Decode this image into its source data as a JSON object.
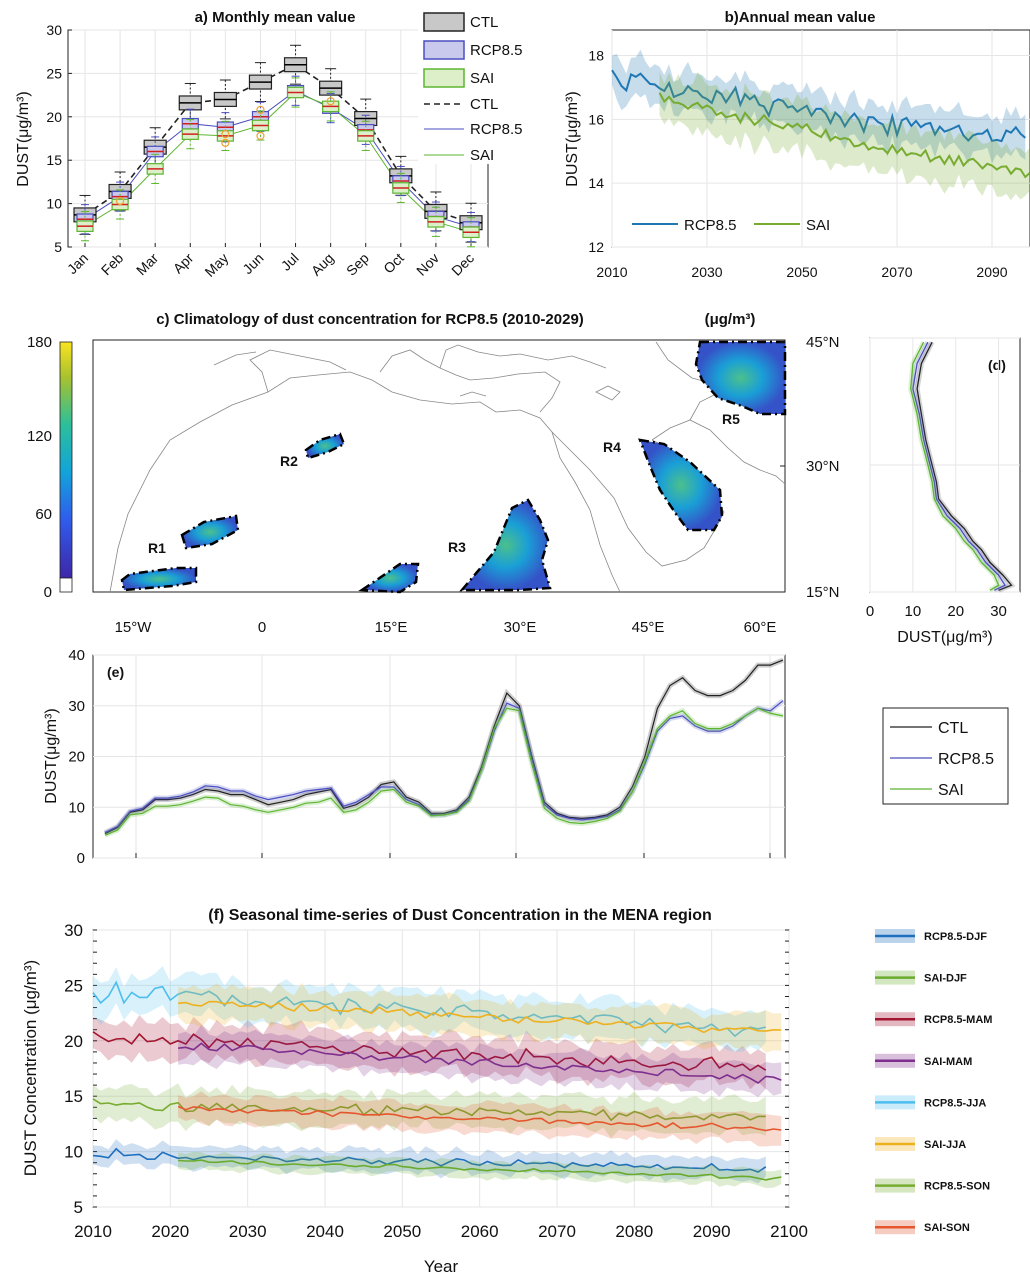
{
  "figure": {
    "a_title": "a) Monthly mean value",
    "b_title": "b)Annual mean value",
    "c_title": "c) Climatology of dust concentration for RCP8.5 (2010-2029)",
    "c_unit": "(μg/m³)",
    "d_label": "(d)",
    "e_label": "(e)",
    "f_title": "(f) Seasonal time-series of Dust Concentration in the MENA region",
    "ylabel_dust": "DUST(μg/m³)",
    "xlabel_d": "DUST(μg/m³)",
    "ylabel_f": "DUST Concentration (μg/m³)",
    "xlabel_f": "Year"
  },
  "legends": {
    "a": [
      "CTL",
      "RCP8.5",
      "SAI",
      "CTL",
      "RCP8.5",
      "SAI"
    ],
    "b": [
      "RCP8.5",
      "SAI"
    ],
    "e": [
      "CTL",
      "RCP8.5",
      "SAI"
    ],
    "f": [
      "RCP8.5-DJF",
      "SAI-DJF",
      "RCP8.5-MAM",
      "SAI-MAM",
      "RCP8.5-JJA",
      "SAI-JJA",
      "RCP8.5-SON",
      "SAI-SON"
    ]
  },
  "colors": {
    "ctl": "#222222",
    "rcp": "#4b4fc0",
    "sai": "#5cb531",
    "b_rcp": "#1f77b4",
    "b_sai": "#77ac30",
    "djf_r": "#1f6fbf",
    "djf_s": "#6aab2e",
    "mam_r": "#a2142f",
    "mam_s": "#7e2f8e",
    "jja_r": "#4dbeee",
    "jja_s": "#edb120",
    "son_r": "#77ac30",
    "son_s": "#e4572e"
  },
  "map": {
    "regions": [
      "R1",
      "R2",
      "R3",
      "R4",
      "R5"
    ],
    "colorbar_ticks": [
      "0",
      "60",
      "120",
      "180"
    ],
    "lon_ticks": [
      "15°W",
      "0",
      "15°E",
      "30°E",
      "45°E",
      "60°E"
    ],
    "lat_ticks": [
      "15°N",
      "30°N",
      "45°N"
    ]
  },
  "chart_data": [
    {
      "panel": "a",
      "type": "box",
      "title": "a) Monthly mean value",
      "categories": [
        "Jan",
        "Feb",
        "Mar",
        "Apr",
        "May",
        "Jun",
        "Jul",
        "Aug",
        "Sep",
        "Oct",
        "Nov",
        "Dec"
      ],
      "ylabel": "DUST(μg/m³)",
      "ylim": [
        5,
        30
      ],
      "yticks": [
        5,
        10,
        15,
        20,
        25,
        30
      ],
      "series": [
        {
          "name": "CTL",
          "values": [
            8.7,
            11.4,
            16.5,
            21.6,
            22.0,
            24.0,
            26.0,
            23.3,
            19.8,
            13.2,
            9.1,
            7.8
          ]
        },
        {
          "name": "RCP8.5",
          "values": [
            8.2,
            10.8,
            16.0,
            19.2,
            18.8,
            20.0,
            23.0,
            21.0,
            18.5,
            12.6,
            8.5,
            7.3
          ]
        },
        {
          "name": "SAI",
          "values": [
            7.4,
            9.9,
            14.0,
            18.0,
            17.8,
            19.0,
            22.8,
            21.2,
            17.8,
            11.8,
            7.9,
            6.7
          ]
        }
      ]
    },
    {
      "panel": "b",
      "type": "line",
      "title": "b)Annual mean value",
      "ylabel": "DUST(μg/m³)",
      "xlim": [
        2010,
        2098
      ],
      "ylim": [
        12,
        18.8
      ],
      "xticks": [
        2010,
        2030,
        2050,
        2070,
        2090
      ],
      "yticks": [
        12,
        14,
        16,
        18
      ],
      "series": [
        {
          "name": "RCP8.5",
          "start": 2010,
          "end": 2097,
          "base_start": 17.4,
          "base_end": 15.4
        },
        {
          "name": "SAI",
          "start": 2020,
          "end": 2098,
          "base_start": 16.8,
          "base_end": 14.3
        }
      ]
    },
    {
      "panel": "d",
      "type": "line",
      "xlabel": "DUST(μg/m³)",
      "xlim": [
        0,
        35
      ],
      "xticks": [
        0,
        10,
        20,
        30
      ],
      "ylim": [
        15,
        45
      ],
      "series": [
        {
          "name": "CTL",
          "x": [
            14.5,
            12,
            11,
            12,
            13,
            14.5,
            15.5,
            16,
            19,
            22,
            24,
            26,
            28,
            31,
            33,
            30
          ],
          "y": [
            44.5,
            42,
            39,
            36,
            33,
            30,
            28,
            26,
            24,
            22.5,
            21,
            20,
            18.5,
            17,
            15.8,
            15.2
          ]
        },
        {
          "name": "RCP8.5",
          "x": [
            13.5,
            11,
            10,
            11.5,
            12.5,
            14,
            15,
            15.5,
            18,
            21,
            23,
            25,
            27,
            30,
            31.5,
            29
          ],
          "y": [
            44.5,
            42,
            39,
            36,
            33,
            30,
            28,
            26,
            24,
            22.5,
            21,
            20,
            18.5,
            17,
            15.8,
            15.2
          ]
        },
        {
          "name": "SAI",
          "x": [
            12.5,
            10,
            9.5,
            11,
            12,
            13.5,
            14.5,
            15,
            17,
            20,
            22,
            24,
            26,
            29,
            30,
            28
          ],
          "y": [
            44.5,
            42,
            39,
            36,
            33,
            30,
            28,
            26,
            24,
            22.5,
            21,
            20,
            18.5,
            17,
            15.8,
            15.2
          ]
        }
      ]
    },
    {
      "panel": "e",
      "type": "line",
      "ylabel": "DUST(μg/m³)",
      "ylim": [
        0,
        40
      ],
      "yticks": [
        0,
        10,
        20,
        30,
        40
      ],
      "series": [
        {
          "name": "CTL",
          "values": [
            4.8,
            6,
            9,
            9.5,
            11.5,
            11.5,
            11.8,
            12.5,
            13.5,
            13.2,
            12.5,
            12.5,
            11.5,
            10.5,
            11,
            11.5,
            12.5,
            13,
            13.5,
            9.8,
            10.5,
            12,
            14.5,
            15,
            12,
            11,
            8.8,
            8.8,
            9.5,
            12,
            18,
            26,
            32.5,
            30,
            20,
            11,
            8.8,
            8,
            7.8,
            8,
            8.5,
            10,
            14,
            20,
            29.5,
            34,
            35.5,
            33,
            32,
            32,
            33,
            35,
            38,
            38,
            39
          ]
        },
        {
          "name": "RCP8.5",
          "values": [
            5,
            6.2,
            9.2,
            9.8,
            11.8,
            11.8,
            12.2,
            13,
            14.2,
            14,
            13.2,
            13.2,
            12.2,
            11.5,
            12,
            12.5,
            13.2,
            13.5,
            13.8,
            10.2,
            11,
            12.5,
            14,
            14,
            11.5,
            10.5,
            8.5,
            8.5,
            9.2,
            11.5,
            17.5,
            25,
            30.5,
            29.5,
            19.5,
            10.5,
            8.5,
            7.8,
            7.5,
            7.8,
            8.2,
            9.5,
            13,
            18.5,
            25,
            27.5,
            28,
            26,
            25,
            25,
            26,
            28,
            29.5,
            29,
            31
          ]
        },
        {
          "name": "SAI",
          "values": [
            4.5,
            5.5,
            8.5,
            8.8,
            10.2,
            10.2,
            10.5,
            11.2,
            12,
            11.8,
            10.5,
            10.2,
            9.5,
            9,
            9.5,
            10,
            10.8,
            11,
            11.8,
            9,
            9.5,
            11,
            13.2,
            13.5,
            11,
            10.2,
            8.3,
            8.5,
            9,
            11.2,
            17.5,
            25.5,
            29.5,
            29,
            18.5,
            9.8,
            7.8,
            7,
            6.8,
            7.2,
            7.8,
            9.2,
            13,
            19,
            25.5,
            28,
            29,
            26.5,
            25.5,
            25.5,
            26.5,
            28,
            29.5,
            28.5,
            28
          ]
        }
      ]
    },
    {
      "panel": "f",
      "type": "line",
      "title": "(f) Seasonal time-series of Dust Concentration in the MENA region",
      "xlabel": "Year",
      "ylabel": "DUST Concentration (μg/m³)",
      "xlim": [
        2010,
        2100
      ],
      "ylim": [
        5,
        30
      ],
      "xticks": [
        2010,
        2020,
        2030,
        2040,
        2050,
        2060,
        2070,
        2080,
        2090,
        2100
      ],
      "yticks": [
        5,
        10,
        15,
        20,
        25,
        30
      ],
      "series": [
        {
          "name": "RCP8.5-DJF",
          "start": 2010,
          "end": 2097,
          "base_start": 9.7,
          "base_end": 8.4
        },
        {
          "name": "SAI-DJF",
          "start": 2021,
          "end": 2099,
          "base_start": 9.2,
          "base_end": 7.6
        },
        {
          "name": "RCP8.5-MAM",
          "start": 2010,
          "end": 2097,
          "base_start": 20.3,
          "base_end": 17.6
        },
        {
          "name": "SAI-MAM",
          "start": 2021,
          "end": 2099,
          "base_start": 19.6,
          "base_end": 16.5
        },
        {
          "name": "RCP8.5-JJA",
          "start": 2010,
          "end": 2097,
          "base_start": 24.5,
          "base_end": 21.0
        },
        {
          "name": "SAI-JJA",
          "start": 2021,
          "end": 2099,
          "base_start": 23.5,
          "base_end": 20.8
        },
        {
          "name": "RCP8.5-SON",
          "start": 2010,
          "end": 2097,
          "base_start": 14.3,
          "base_end": 13.0
        },
        {
          "name": "SAI-SON",
          "start": 2021,
          "end": 2099,
          "base_start": 14.0,
          "base_end": 12.0
        }
      ]
    }
  ]
}
